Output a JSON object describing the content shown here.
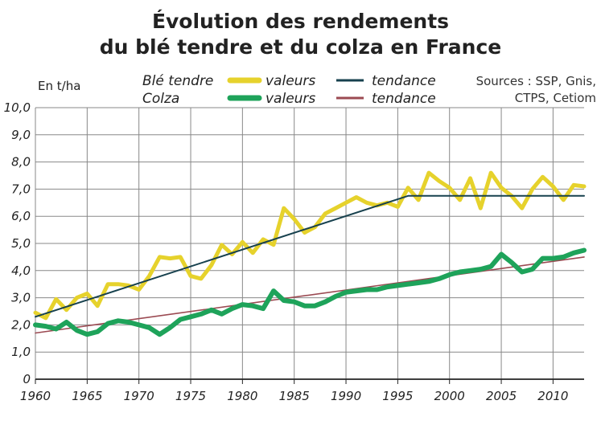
{
  "title_line1": "Évolution des rendements",
  "title_line2": "du blé tendre et du colza en France",
  "unit_label": "En t/ha",
  "legend": {
    "ble_label": "Blé tendre",
    "colza_label": "Colza",
    "values_label": "valeurs",
    "trend_label": "tendance"
  },
  "sources_line1": "Sources : SSP, Gnis,",
  "sources_line2": "CTPS, Cetiom",
  "colors": {
    "ble_values": "#e6d22c",
    "ble_trend": "#17414e",
    "colza_values": "#1ea35a",
    "colza_trend": "#9b4a52",
    "grid": "#888888"
  },
  "chart_data": {
    "type": "line",
    "ylim": [
      0,
      10
    ],
    "xlim": [
      1960,
      2013
    ],
    "yticks": [
      "0",
      "1,0",
      "2,0",
      "3,0",
      "4,0",
      "5,0",
      "6,0",
      "7,0",
      "8,0",
      "9,0",
      "10,0"
    ],
    "xticks": [
      "1960",
      "1965",
      "1970",
      "1975",
      "1980",
      "1985",
      "1990",
      "1995",
      "2000",
      "2005",
      "2010"
    ],
    "grid": true,
    "series": [
      {
        "name": "Blé tendre valeurs",
        "x": [
          1960,
          1961,
          1962,
          1963,
          1964,
          1965,
          1966,
          1967,
          1968,
          1969,
          1970,
          1971,
          1972,
          1973,
          1974,
          1975,
          1976,
          1977,
          1978,
          1979,
          1980,
          1981,
          1982,
          1983,
          1984,
          1985,
          1986,
          1987,
          1988,
          1989,
          1990,
          1991,
          1992,
          1993,
          1994,
          1995,
          1996,
          1997,
          1998,
          1999,
          2000,
          2001,
          2002,
          2003,
          2004,
          2005,
          2006,
          2007,
          2008,
          2009,
          2010,
          2011,
          2012,
          2013
        ],
        "values": [
          2.45,
          2.25,
          2.95,
          2.55,
          3.0,
          3.15,
          2.7,
          3.5,
          3.5,
          3.45,
          3.3,
          3.8,
          4.5,
          4.45,
          4.5,
          3.8,
          3.7,
          4.2,
          4.95,
          4.6,
          5.05,
          4.65,
          5.15,
          4.95,
          6.3,
          5.9,
          5.4,
          5.6,
          6.1,
          6.3,
          6.5,
          6.7,
          6.5,
          6.4,
          6.5,
          6.35,
          7.05,
          6.6,
          7.6,
          7.3,
          7.05,
          6.6,
          7.4,
          6.3,
          7.6,
          7.05,
          6.75,
          6.3,
          7.0,
          7.45,
          7.1,
          6.6,
          7.15,
          7.1
        ]
      },
      {
        "name": "Blé tendre tendance",
        "x": [
          1960,
          1996,
          2013
        ],
        "values": [
          2.3,
          6.75,
          6.75
        ]
      },
      {
        "name": "Colza valeurs",
        "x": [
          1960,
          1961,
          1962,
          1963,
          1964,
          1965,
          1966,
          1967,
          1968,
          1969,
          1970,
          1971,
          1972,
          1973,
          1974,
          1975,
          1976,
          1977,
          1978,
          1979,
          1980,
          1981,
          1982,
          1983,
          1984,
          1985,
          1986,
          1987,
          1988,
          1989,
          1990,
          1991,
          1992,
          1993,
          1994,
          1995,
          1996,
          1997,
          1998,
          1999,
          2000,
          2001,
          2002,
          2003,
          2004,
          2005,
          2006,
          2007,
          2008,
          2009,
          2010,
          2011,
          2012,
          2013
        ],
        "values": [
          2.0,
          1.95,
          1.85,
          2.1,
          1.8,
          1.65,
          1.75,
          2.05,
          2.15,
          2.1,
          2.0,
          1.9,
          1.65,
          1.9,
          2.2,
          2.3,
          2.4,
          2.55,
          2.4,
          2.6,
          2.75,
          2.7,
          2.6,
          3.25,
          2.9,
          2.85,
          2.7,
          2.7,
          2.85,
          3.05,
          3.2,
          3.25,
          3.3,
          3.3,
          3.4,
          3.45,
          3.5,
          3.55,
          3.6,
          3.7,
          3.85,
          3.95,
          4.0,
          4.05,
          4.15,
          4.6,
          4.3,
          3.95,
          4.05,
          4.45,
          4.45,
          4.5,
          4.65,
          4.75
        ]
      },
      {
        "name": "Colza tendance",
        "x": [
          1960,
          2013
        ],
        "values": [
          1.7,
          4.5
        ]
      }
    ]
  }
}
